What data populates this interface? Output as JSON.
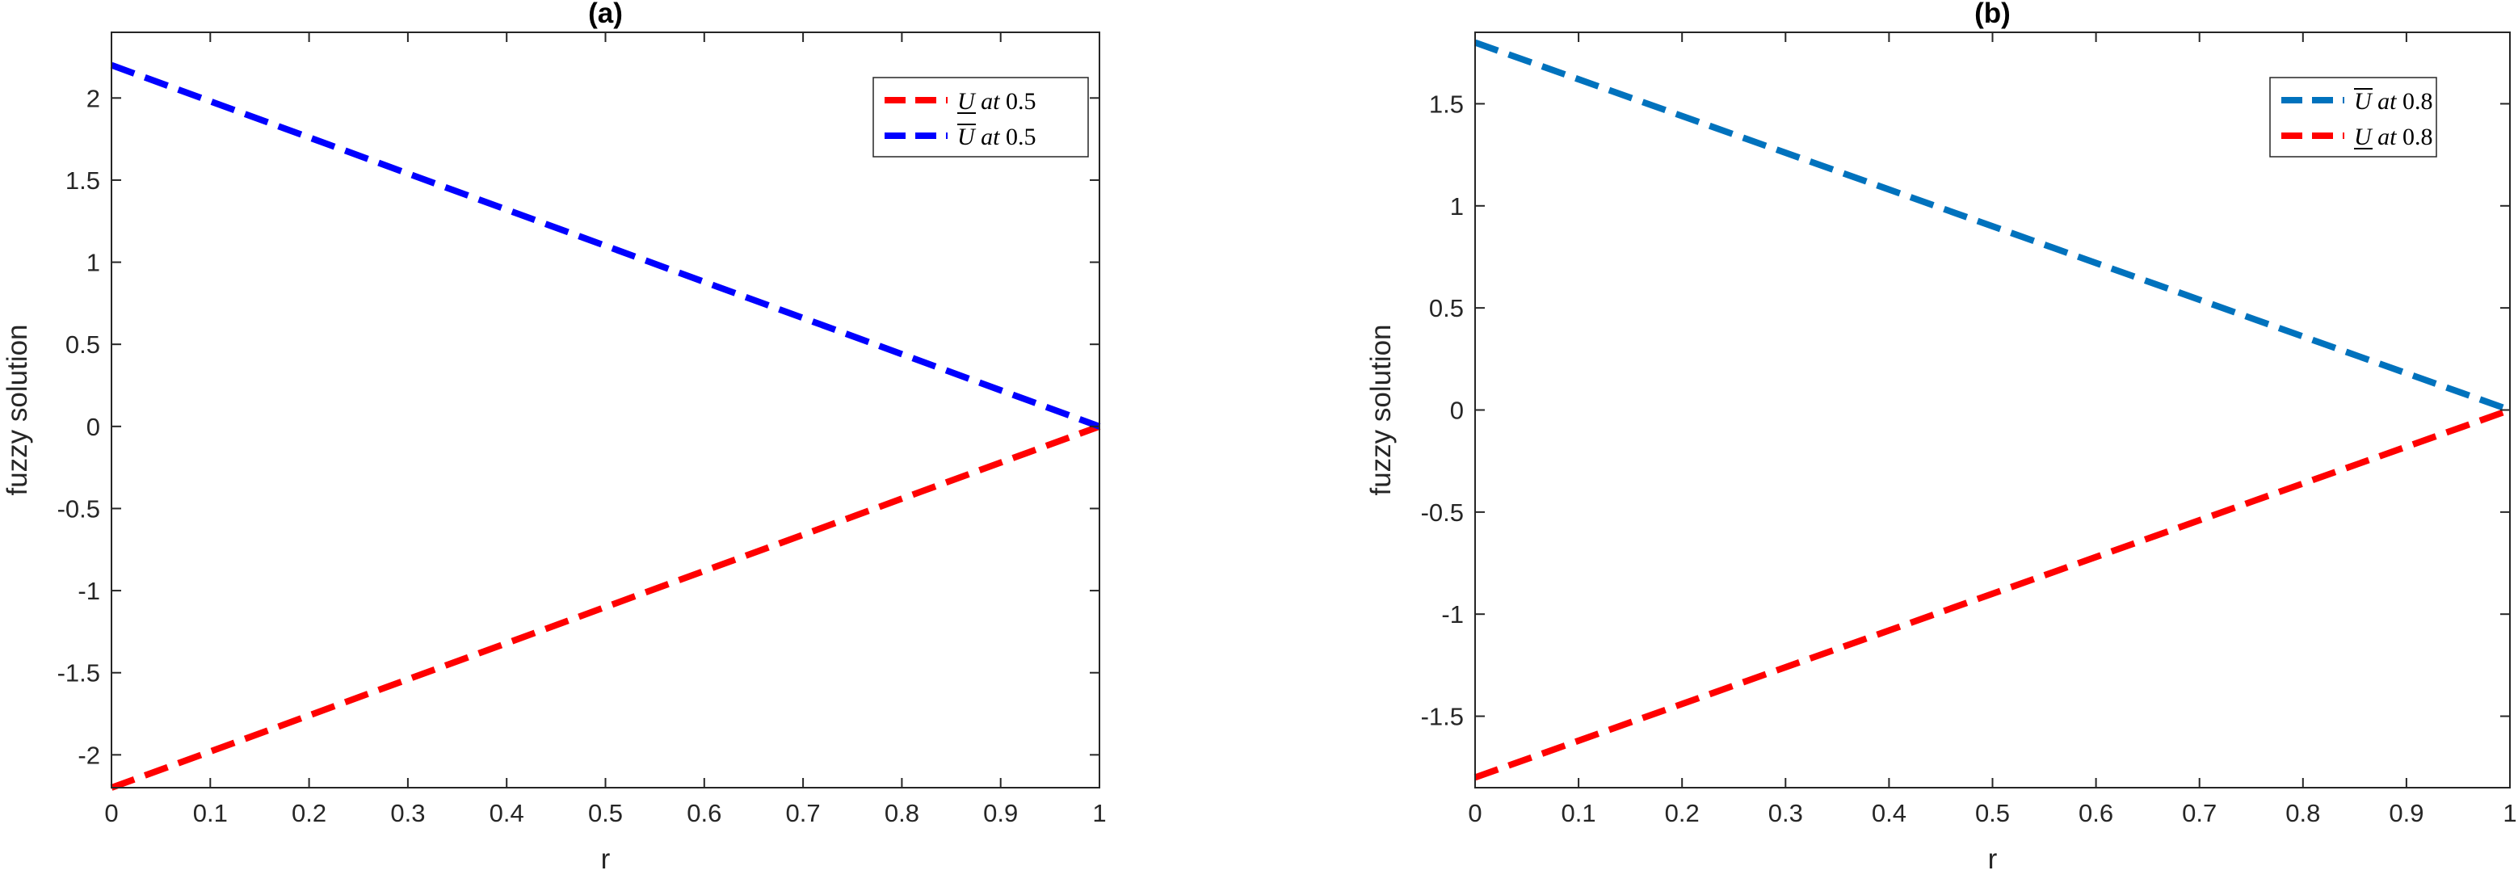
{
  "chart_data": [
    {
      "type": "line",
      "title": "(a)",
      "xlabel": "r",
      "ylabel": "fuzzy solution",
      "xlim": [
        0,
        1
      ],
      "ylim": [
        -2.2,
        2.4
      ],
      "xticks": [
        0,
        0.1,
        0.2,
        0.3,
        0.4,
        0.5,
        0.6,
        0.7,
        0.8,
        0.9,
        1
      ],
      "xtick_labels": [
        "0",
        "0.1",
        "0.2",
        "0.3",
        "0.4",
        "0.5",
        "0.6",
        "0.7",
        "0.8",
        "0.9",
        "1"
      ],
      "yticks": [
        -2,
        -1.5,
        -1,
        -0.5,
        0,
        0.5,
        1,
        1.5,
        2
      ],
      "ytick_labels": [
        "-2",
        "-1.5",
        "-1",
        "-0.5",
        "0",
        "0.5",
        "1",
        "1.5",
        "2"
      ],
      "grid": false,
      "legend_position": "top-right",
      "series": [
        {
          "name": "U at 0.5",
          "legend_symbol": "U",
          "legend_bar": "under",
          "legend_text": "at",
          "legend_value": "0.5",
          "color": "#ff0000",
          "style": "dashed",
          "x": [
            0,
            1
          ],
          "y": [
            -2.2,
            0
          ]
        },
        {
          "name": "U at 0.5",
          "legend_symbol": "U",
          "legend_bar": "over",
          "legend_text": "at",
          "legend_value": "0.5",
          "color": "#0000ff",
          "style": "dashed",
          "x": [
            0,
            1
          ],
          "y": [
            2.2,
            0
          ]
        }
      ]
    },
    {
      "type": "line",
      "title": "(b)",
      "xlabel": "r",
      "ylabel": "fuzzy solution",
      "xlim": [
        0,
        1
      ],
      "ylim": [
        -1.85,
        1.85
      ],
      "xticks": [
        0,
        0.1,
        0.2,
        0.3,
        0.4,
        0.5,
        0.6,
        0.7,
        0.8,
        0.9,
        1
      ],
      "xtick_labels": [
        "0",
        "0.1",
        "0.2",
        "0.3",
        "0.4",
        "0.5",
        "0.6",
        "0.7",
        "0.8",
        "0.9",
        "1"
      ],
      "yticks": [
        -1.5,
        -1,
        -0.5,
        0,
        0.5,
        1,
        1.5
      ],
      "ytick_labels": [
        "-1.5",
        "-1",
        "-0.5",
        "0",
        "0.5",
        "1",
        "1.5"
      ],
      "grid": false,
      "legend_position": "top-right",
      "series": [
        {
          "name": "U at 0.8",
          "legend_symbol": "U",
          "legend_bar": "over",
          "legend_text": "at",
          "legend_value": "0.8",
          "color": "#0072bd",
          "style": "dashed",
          "x": [
            0,
            1
          ],
          "y": [
            1.8,
            0
          ]
        },
        {
          "name": "U at 0.8",
          "legend_symbol": "U",
          "legend_bar": "under",
          "legend_text": "at",
          "legend_value": "0.8",
          "color": "#ff0000",
          "style": "dashed",
          "x": [
            0,
            1
          ],
          "y": [
            -1.8,
            0
          ]
        }
      ]
    }
  ]
}
